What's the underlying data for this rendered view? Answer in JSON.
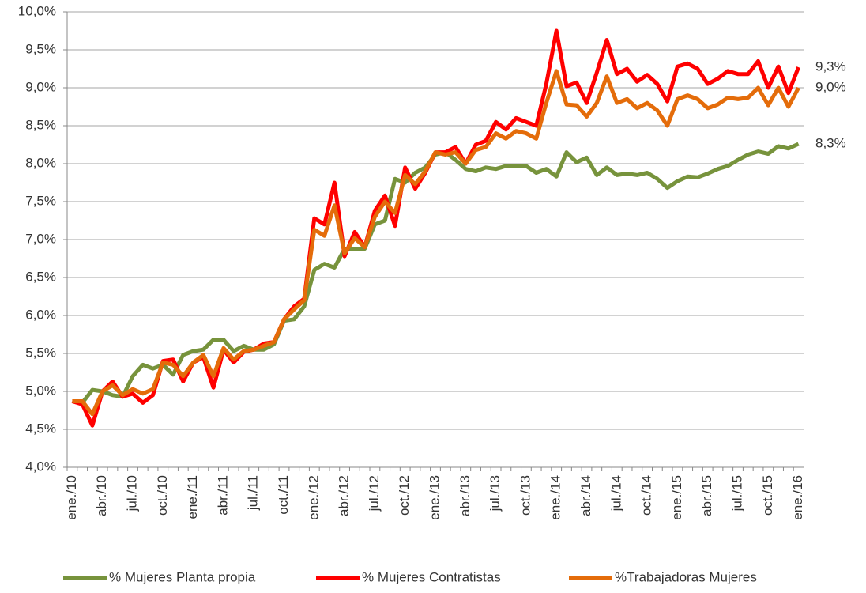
{
  "chart_data": {
    "type": "line",
    "categories": [
      "ene./10",
      null,
      null,
      "abr./10",
      null,
      null,
      "jul./10",
      null,
      null,
      "oct./10",
      null,
      null,
      "ene./11",
      null,
      null,
      "abr./11",
      null,
      null,
      "jul./11",
      null,
      null,
      "oct./11",
      null,
      null,
      "ene./12",
      null,
      null,
      "abr./12",
      null,
      null,
      "jul./12",
      null,
      null,
      "oct./12",
      null,
      null,
      "ene./13",
      null,
      null,
      "abr./13",
      null,
      null,
      "jul./13",
      null,
      null,
      "oct./13",
      null,
      null,
      "ene./14",
      null,
      null,
      "abr./14",
      null,
      null,
      "jul./14",
      null,
      null,
      "oct./14",
      null,
      null,
      "ene./15",
      null,
      null,
      "abr./15",
      null,
      null,
      "jul./15",
      null,
      null,
      "oct./15",
      null,
      null,
      "ene./16"
    ],
    "series": [
      {
        "name": "% Mujeres Planta propia",
        "color": "#77933c",
        "values": [
          4.87,
          4.85,
          5.02,
          5.0,
          4.95,
          4.93,
          5.2,
          5.35,
          5.3,
          5.35,
          5.22,
          5.48,
          5.53,
          5.55,
          5.68,
          5.68,
          5.53,
          5.6,
          5.55,
          5.55,
          5.62,
          5.93,
          5.95,
          6.12,
          6.6,
          6.68,
          6.63,
          6.88,
          6.88,
          6.88,
          7.2,
          7.25,
          7.8,
          7.75,
          7.88,
          7.95,
          8.12,
          8.15,
          8.05,
          7.93,
          7.9,
          7.95,
          7.93,
          7.97,
          7.97,
          7.97,
          7.88,
          7.93,
          7.83,
          8.15,
          8.02,
          8.08,
          7.85,
          7.95,
          7.85,
          7.87,
          7.85,
          7.88,
          7.8,
          7.68,
          7.77,
          7.83,
          7.82,
          7.87,
          7.93,
          7.97,
          8.05,
          8.12,
          8.16,
          8.13,
          8.23,
          8.2,
          8.26
        ],
        "value_labels": [
          null,
          null,
          null,
          null,
          null,
          null,
          null,
          null,
          null,
          null,
          null,
          null,
          null,
          null,
          null,
          null,
          null,
          null,
          null,
          null,
          null,
          null,
          null,
          null,
          null,
          null,
          null,
          null,
          null,
          null,
          null,
          null,
          null,
          null,
          null,
          null,
          null,
          null,
          null,
          null,
          null,
          null,
          null,
          null,
          null,
          null,
          null,
          null,
          null,
          null,
          null,
          null,
          null,
          null,
          null,
          null,
          null,
          null,
          null,
          null,
          null,
          null,
          null,
          null,
          null,
          null,
          null,
          null,
          null,
          null,
          null,
          null,
          "8,3%"
        ]
      },
      {
        "name": "% Mujeres Contratistas",
        "color": "#ff0000",
        "values": [
          4.87,
          4.83,
          4.55,
          5.0,
          5.13,
          4.93,
          4.97,
          4.85,
          4.95,
          5.4,
          5.42,
          5.13,
          5.38,
          5.45,
          5.05,
          5.55,
          5.38,
          5.52,
          5.55,
          5.63,
          5.65,
          5.95,
          6.12,
          6.22,
          7.28,
          7.2,
          7.75,
          6.78,
          7.1,
          6.9,
          7.38,
          7.58,
          7.18,
          7.95,
          7.67,
          7.88,
          8.15,
          8.15,
          8.22,
          8.0,
          8.25,
          8.3,
          8.55,
          8.45,
          8.6,
          8.55,
          8.5,
          9.05,
          9.75,
          9.02,
          9.07,
          8.8,
          9.2,
          9.63,
          9.18,
          9.25,
          9.08,
          9.17,
          9.05,
          8.82,
          9.28,
          9.32,
          9.25,
          9.05,
          9.12,
          9.22,
          9.18,
          9.18,
          9.35,
          9.0,
          9.28,
          8.93,
          9.27
        ],
        "value_labels": [
          null,
          null,
          null,
          null,
          null,
          null,
          null,
          null,
          null,
          null,
          null,
          null,
          null,
          null,
          null,
          null,
          null,
          null,
          null,
          null,
          null,
          null,
          null,
          null,
          null,
          null,
          null,
          null,
          null,
          null,
          null,
          null,
          null,
          null,
          null,
          null,
          null,
          null,
          null,
          null,
          null,
          null,
          null,
          null,
          null,
          null,
          null,
          null,
          null,
          null,
          null,
          null,
          null,
          null,
          null,
          null,
          null,
          null,
          null,
          null,
          null,
          null,
          null,
          null,
          null,
          null,
          null,
          null,
          null,
          null,
          null,
          null,
          "9,3%"
        ]
      },
      {
        "name": "%Trabajadoras Mujeres",
        "color": "#e46c0a",
        "values": [
          4.87,
          4.87,
          4.7,
          5.0,
          5.08,
          4.95,
          5.03,
          4.97,
          5.03,
          5.38,
          5.35,
          5.2,
          5.38,
          5.48,
          5.2,
          5.57,
          5.42,
          5.53,
          5.55,
          5.6,
          5.65,
          5.95,
          6.08,
          6.2,
          7.13,
          7.05,
          7.45,
          6.82,
          7.02,
          6.9,
          7.3,
          7.5,
          7.35,
          7.85,
          7.73,
          7.9,
          8.15,
          8.12,
          8.15,
          8.0,
          8.18,
          8.22,
          8.4,
          8.33,
          8.43,
          8.4,
          8.33,
          8.8,
          9.22,
          8.78,
          8.77,
          8.62,
          8.8,
          9.15,
          8.8,
          8.85,
          8.73,
          8.8,
          8.7,
          8.5,
          8.85,
          8.9,
          8.85,
          8.73,
          8.78,
          8.87,
          8.85,
          8.87,
          9.0,
          8.77,
          9.0,
          8.75,
          9.0
        ],
        "value_labels": [
          null,
          null,
          null,
          null,
          null,
          null,
          null,
          null,
          null,
          null,
          null,
          null,
          null,
          null,
          null,
          null,
          null,
          null,
          null,
          null,
          null,
          null,
          null,
          null,
          null,
          null,
          null,
          null,
          null,
          null,
          null,
          null,
          null,
          null,
          null,
          null,
          null,
          null,
          null,
          null,
          null,
          null,
          null,
          null,
          null,
          null,
          null,
          null,
          null,
          null,
          null,
          null,
          null,
          null,
          null,
          null,
          null,
          null,
          null,
          null,
          null,
          null,
          null,
          null,
          null,
          null,
          null,
          null,
          null,
          null,
          null,
          null,
          "9,0%"
        ]
      }
    ],
    "ylim": [
      4.0,
      10.0
    ],
    "yticks": [
      {
        "value": 4.0,
        "label": "4,0%"
      },
      {
        "value": 4.5,
        "label": "4,5%"
      },
      {
        "value": 5.0,
        "label": "5,0%"
      },
      {
        "value": 5.5,
        "label": "5,5%"
      },
      {
        "value": 6.0,
        "label": "6,0%"
      },
      {
        "value": 6.5,
        "label": "6,5%"
      },
      {
        "value": 7.0,
        "label": "7,0%"
      },
      {
        "value": 7.5,
        "label": "7,5%"
      },
      {
        "value": 8.0,
        "label": "8,0%"
      },
      {
        "value": 8.5,
        "label": "8,5%"
      },
      {
        "value": 9.0,
        "label": "9,0%"
      },
      {
        "value": 9.5,
        "label": "9,5%"
      },
      {
        "value": 10.0,
        "label": "10,0%"
      }
    ],
    "grid": true,
    "legend": "bottom"
  }
}
